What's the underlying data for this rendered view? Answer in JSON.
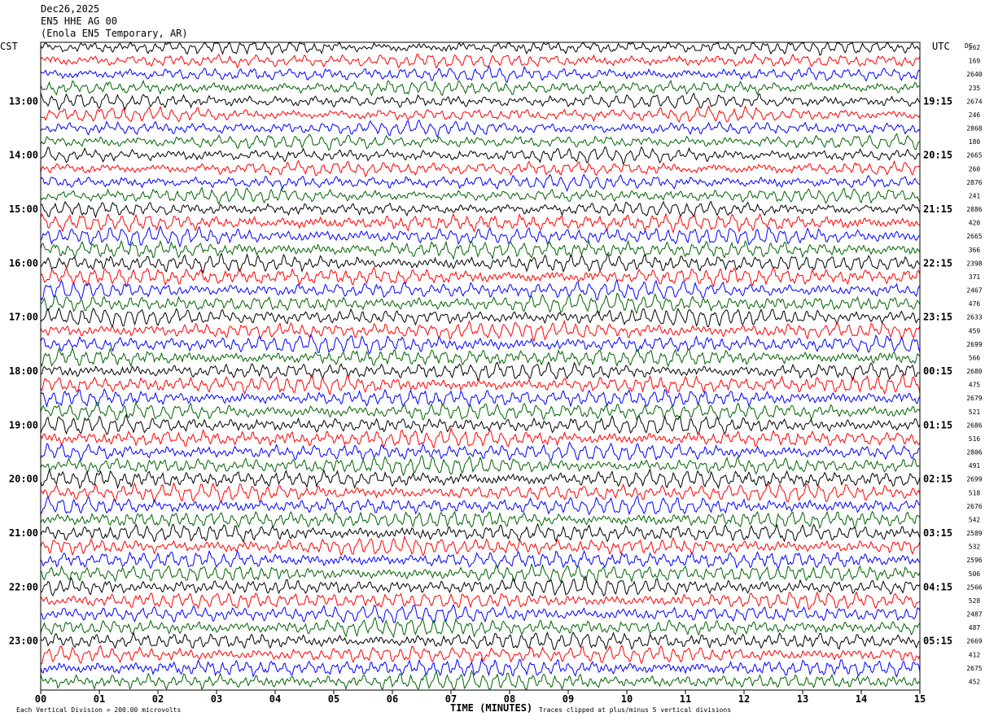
{
  "header": {
    "date": "Dec26,2025",
    "station": "EN5 HHE AG 00",
    "location": "(Enola EN5 Temporary, AR)"
  },
  "labels": {
    "left_tz": "CST",
    "right_tz": "UTC",
    "dc": "DC",
    "x_axis": "TIME (MINUTES)",
    "scale_note": "Each Vertical Division =  200.00 microvolts",
    "clip_note": "Traces clipped at plus/minus 5 vertical divisions"
  },
  "colors": {
    "trace_cycle": [
      "#000000",
      "#ff0000",
      "#0000ff",
      "#006400"
    ],
    "background": "#ffffff"
  },
  "chart_data": {
    "type": "line",
    "title": "Dec26,2025 EN5 HHE AG 00 (Enola EN5 Temporary, AR)",
    "xlabel": "TIME (MINUTES)",
    "xlim": [
      0,
      15
    ],
    "x_ticks": [
      "00",
      "01",
      "02",
      "03",
      "04",
      "05",
      "06",
      "07",
      "08",
      "09",
      "10",
      "11",
      "12",
      "13",
      "14",
      "15"
    ],
    "left_hour_labels": [
      "13:00",
      "14:00",
      "15:00",
      "16:00",
      "17:00",
      "18:00",
      "19:00",
      "20:00",
      "21:00",
      "22:00",
      "23:00"
    ],
    "right_hour_labels": [
      "19:15",
      "20:15",
      "21:15",
      "22:15",
      "23:15",
      "00:15",
      "01:15",
      "02:15",
      "03:15",
      "04:15",
      "05:15"
    ],
    "traces_per_hour": 4,
    "trace_count": 48,
    "dc_offsets": [
      "262",
      "169",
      "2640",
      "235",
      "2674",
      "246",
      "2868",
      "180",
      "2665",
      "260",
      "2876",
      "241",
      "2886",
      "420",
      "2665",
      "366",
      "2398",
      "371",
      "2467",
      "476",
      "2633",
      "459",
      "2699",
      "566",
      "2680",
      "475",
      "2679",
      "521",
      "2686",
      "516",
      "2806",
      "491",
      "2699",
      "518",
      "2676",
      "542",
      "2589",
      "532",
      "2596",
      "506",
      "2566",
      "528",
      "2487",
      "487",
      "2669",
      "412",
      "2675",
      "452"
    ],
    "scale": "200.00 microvolts per vertical division",
    "clip": "plus/minus 5 vertical divisions"
  }
}
